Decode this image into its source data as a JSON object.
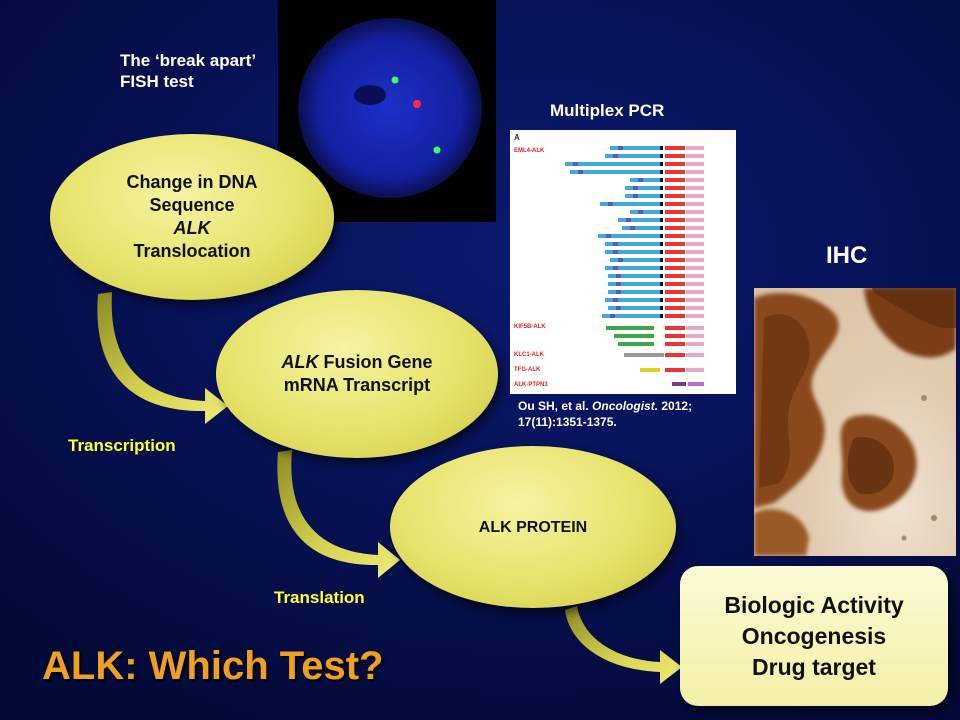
{
  "fish": {
    "caption_line1": "The ‘break apart’",
    "caption_line2": "FISH test"
  },
  "pcr": {
    "title": "Multiplex PCR",
    "panel_letter": "A",
    "groups": [
      "EML4-ALK",
      "KIF5B-ALK",
      "KLC1-ALK",
      "TFG-ALK",
      "ALK-PTPN3"
    ],
    "citation_authors": "Ou SH, et al.",
    "citation_journal": "Oncologist.",
    "citation_year": "2012;",
    "citation_pages": "17(11):1351-1375."
  },
  "ihc": {
    "label": "IHC"
  },
  "steps": {
    "dna_line1": "Change in DNA",
    "dna_line2": "Sequence",
    "dna_line3": "ALK",
    "dna_line4": "Translocation",
    "mrna_italic": "ALK",
    "mrna_rest": " Fusion Gene",
    "mrna_line2": "mRNA Transcript",
    "protein": "ALK PROTEIN",
    "transcription": "Transcription",
    "translation": "Translation"
  },
  "outcome": {
    "line1": "Biologic Activity",
    "line2": "Oncogenesis",
    "line3": "Drug target"
  },
  "title": "ALK: Which Test?",
  "colors": {
    "oval": "#e6e36a",
    "accent_label": "#ffff33",
    "title": "#f0a020",
    "background": "#07135a"
  }
}
